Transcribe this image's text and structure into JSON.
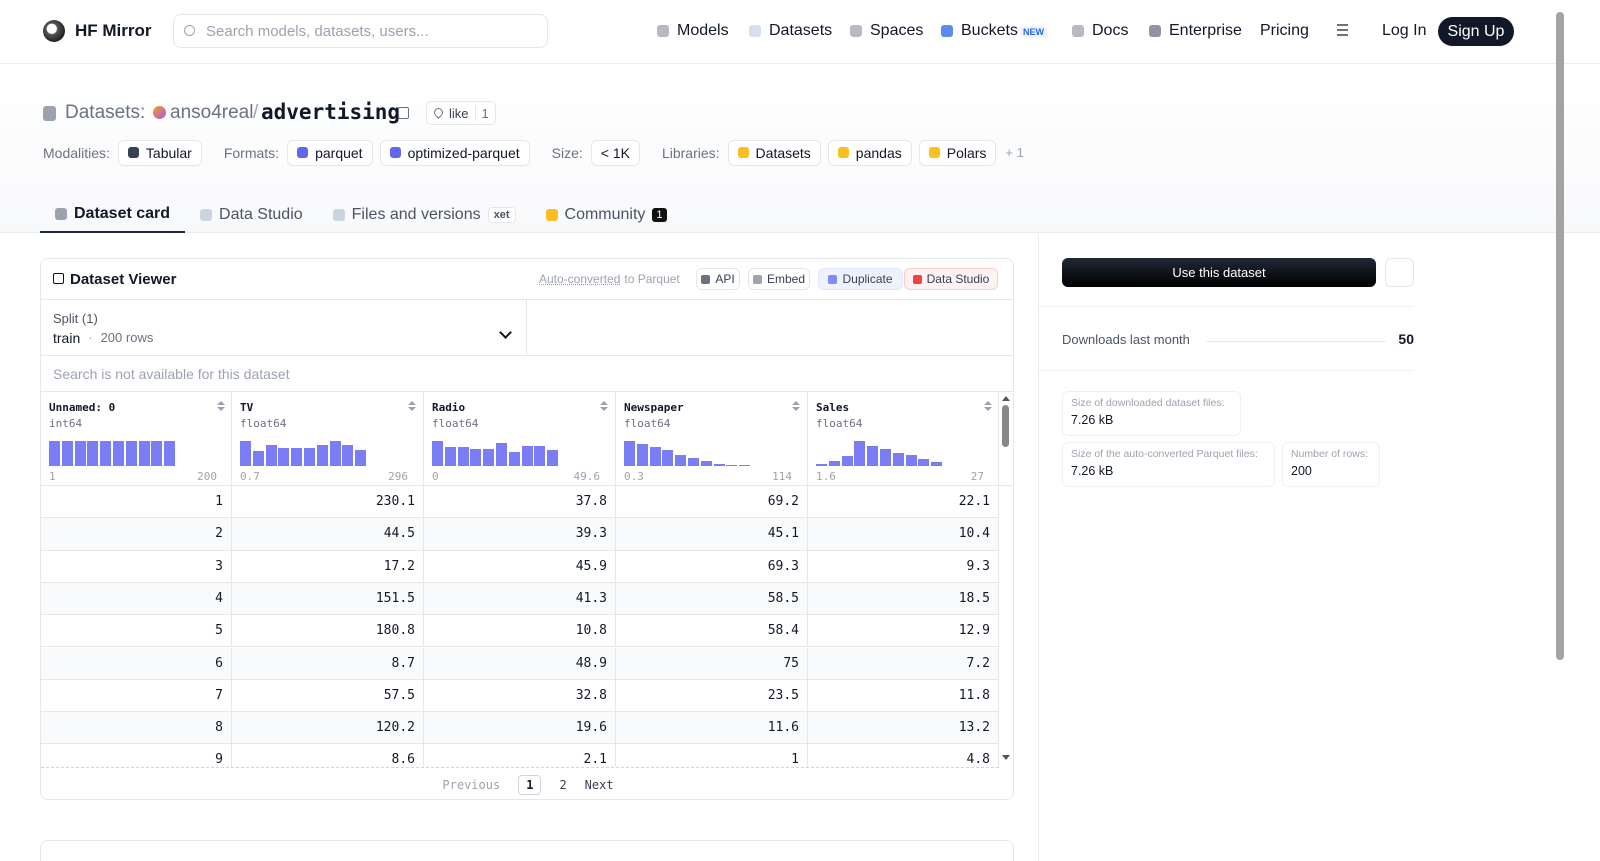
{
  "header": {
    "logo": "HF Mirror",
    "search_placeholder": "Search models, datasets, users...",
    "nav": [
      "Models",
      "Datasets",
      "Spaces",
      "Buckets",
      "Docs",
      "Enterprise",
      "Pricing"
    ],
    "nav_badge": "NEW",
    "login": "Log In",
    "signup": "Sign Up"
  },
  "repo": {
    "type": "Datasets:",
    "owner": "anso4real",
    "separator": "/",
    "name": "advertising",
    "like": "like",
    "likes": 1
  },
  "tags": [
    {
      "label": "Modalities:",
      "items": [
        "Tabular"
      ]
    },
    {
      "label": "Formats:",
      "items": [
        "parquet",
        "optimized-parquet"
      ]
    },
    {
      "label": "Size:",
      "items": [
        "< 1K"
      ]
    },
    {
      "label": "Libraries:",
      "items": [
        "Datasets",
        "pandas",
        "Polars"
      ],
      "more": "+ 1"
    }
  ],
  "tabs": [
    {
      "label": "Dataset card"
    },
    {
      "label": "Data Studio"
    },
    {
      "label": "Files and versions",
      "badge": "xet"
    },
    {
      "label": "Community",
      "count": 1
    }
  ],
  "viewer": {
    "title": "Dataset Viewer",
    "converted": "Auto-converted",
    "converted_suffix": "to Parquet",
    "actions": [
      "API",
      "Embed",
      "Duplicate",
      "Data Studio"
    ],
    "split_label": "Split (1)",
    "split": "train",
    "split_separator": "·",
    "split_rows": "200 rows",
    "search_note": "Search is not available for this dataset",
    "columns": [
      {
        "name": "Unnamed: 0",
        "dtype": "int64",
        "min": 1,
        "max": 200,
        "hist": [
          20,
          20,
          20,
          20,
          20,
          20,
          20,
          20,
          20,
          20
        ]
      },
      {
        "name": "TV",
        "dtype": "float64",
        "min": 0.7,
        "max": 296,
        "hist": [
          24,
          14,
          20,
          17,
          17,
          17,
          20,
          24,
          20,
          15
        ]
      },
      {
        "name": "Radio",
        "dtype": "float64",
        "min": 0,
        "max": 49.6,
        "hist": [
          24,
          18,
          18,
          16,
          16,
          22,
          13,
          19,
          19,
          15
        ]
      },
      {
        "name": "Newspaper",
        "dtype": "float64",
        "min": 0.3,
        "max": 114,
        "hist": [
          24,
          21,
          18,
          15,
          11,
          8,
          5,
          2,
          1,
          1
        ]
      },
      {
        "name": "Sales",
        "dtype": "float64",
        "min": 1.6,
        "max": 27,
        "hist": [
          2,
          5,
          10,
          25,
          20,
          17,
          13,
          11,
          7,
          4
        ]
      }
    ],
    "rows": [
      [
        1,
        230.1,
        37.8,
        69.2,
        22.1
      ],
      [
        2,
        44.5,
        39.3,
        45.1,
        10.4
      ],
      [
        3,
        17.2,
        45.9,
        69.3,
        9.3
      ],
      [
        4,
        151.5,
        41.3,
        58.5,
        18.5
      ],
      [
        5,
        180.8,
        10.8,
        58.4,
        12.9
      ],
      [
        6,
        8.7,
        48.9,
        75,
        7.2
      ],
      [
        7,
        57.5,
        32.8,
        23.5,
        11.8
      ],
      [
        8,
        120.2,
        19.6,
        11.6,
        13.2
      ],
      [
        9,
        8.6,
        2.1,
        1,
        4.8
      ]
    ],
    "pagination": {
      "previous": "Previous",
      "pages": [
        1,
        2
      ],
      "next": "Next"
    }
  },
  "sidebar": {
    "cta": "Use this dataset",
    "downloads_label": "Downloads last month",
    "downloads": 50,
    "stats": [
      {
        "label": "Size of downloaded dataset files:",
        "value": "7.26 kB"
      },
      {
        "label": "Size of the auto-converted Parquet files:",
        "value": "7.26 kB"
      },
      {
        "label": "Number of rows:",
        "value": 200
      }
    ]
  }
}
